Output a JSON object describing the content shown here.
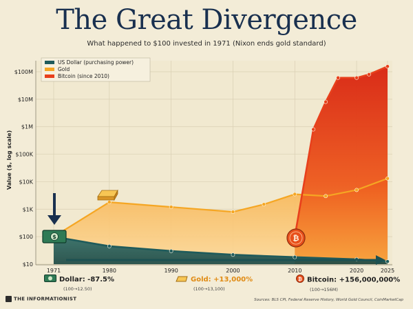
{
  "title": "The Great Divergence",
  "subtitle": "What happened to $100 invested in 1971 (Nixon ends gold standard)",
  "chart_data": {
    "type": "area",
    "title": "The Great Divergence",
    "subtitle": "What happened to $100 invested in 1971 (Nixon ends gold standard)",
    "xlabel": "",
    "ylabel": "Value ($, log scale)",
    "x_ticks": [
      1971,
      1980,
      1990,
      2000,
      2010,
      2020,
      2025
    ],
    "y_ticks": [
      10,
      100,
      1000,
      10000,
      100000,
      1000000,
      10000000,
      100000000
    ],
    "y_tick_labels": [
      "$10",
      "$100",
      "$1K",
      "$10K",
      "$100K",
      "$1M",
      "$10M",
      "$100M"
    ],
    "xlim": [
      1971,
      2025
    ],
    "ylim": [
      10,
      200000000
    ],
    "scale": "log",
    "grid": true,
    "legend_position": "top-left",
    "legend": [
      "US Dollar (purchasing power)",
      "Gold",
      "Bitcoin (since 2010)"
    ],
    "series": [
      {
        "name": "US Dollar (purchasing power)",
        "color": "#1f5b5b",
        "x": [
          1971,
          1980,
          1990,
          2000,
          2010,
          2020,
          2025
        ],
        "values": [
          100,
          45,
          30,
          22,
          18,
          15,
          12.5
        ]
      },
      {
        "name": "Gold",
        "color": "#f5a623",
        "x": [
          1971,
          1980,
          1990,
          2000,
          2005,
          2010,
          2015,
          2020,
          2025
        ],
        "values": [
          100,
          1800,
          1200,
          800,
          1500,
          3500,
          3000,
          5000,
          13100
        ]
      },
      {
        "name": "Bitcoin (since 2010)",
        "color": "#e8401c",
        "x": [
          2010,
          2013,
          2015,
          2017,
          2020,
          2022,
          2025
        ],
        "values": [
          100,
          800000,
          8000000,
          60000000,
          60000000,
          80000000,
          156000000
        ]
      }
    ]
  },
  "summary": {
    "dollar": {
      "label": "Dollar: -87.5%",
      "detail": "(100→12.50)"
    },
    "gold": {
      "label": "Gold: +13,000%",
      "detail": "(100→13,100)"
    },
    "bitcoin": {
      "label": "Bitcoin: +156,000,000%",
      "detail": "(100→156M)"
    }
  },
  "brand": "THE INFORMATIONIST",
  "sources": "Sources: BLS CPI, Federal Reserve History, World Gold Council, CoinMarketCap",
  "colors": {
    "background": "#f3ecd7",
    "navy": "#19304f",
    "teal": "#1f5b5b",
    "gold": "#f5a623",
    "bitcoin": "#e8401c"
  }
}
